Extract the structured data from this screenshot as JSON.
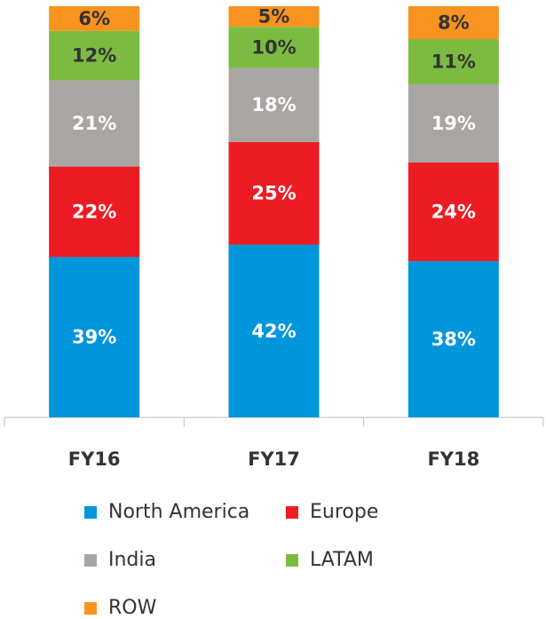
{
  "chart_data": {
    "type": "stacked_bar",
    "categories": [
      "FY16",
      "FY17",
      "FY18"
    ],
    "series": [
      {
        "name": "North America",
        "color": "#0096db",
        "values": [
          39,
          42,
          38
        ],
        "value_labels": [
          "39%",
          "42%",
          "38%"
        ]
      },
      {
        "name": "Europe",
        "color": "#ed1c24",
        "values": [
          22,
          25,
          24
        ],
        "value_labels": [
          "22%",
          "25%",
          "24%"
        ]
      },
      {
        "name": "India",
        "color": "#a8a5a3",
        "values": [
          21,
          18,
          19
        ],
        "value_labels": [
          "21%",
          "18%",
          "19%"
        ]
      },
      {
        "name": "LATAM",
        "color": "#7cbb42",
        "values": [
          12,
          10,
          11
        ],
        "value_labels": [
          "12%",
          "10%",
          "11%"
        ]
      },
      {
        "name": "ROW",
        "color": "#f7931e",
        "values": [
          6,
          5,
          8
        ],
        "value_labels": [
          "6%",
          "5%",
          "8%"
        ]
      }
    ]
  }
}
